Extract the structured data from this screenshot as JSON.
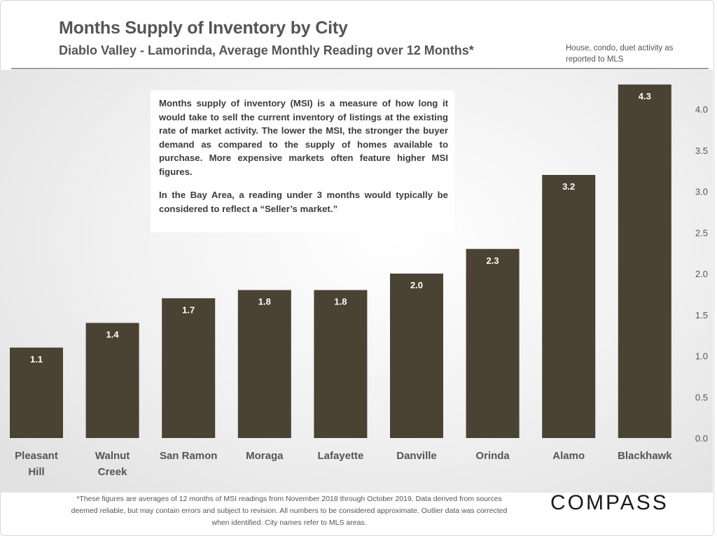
{
  "header": {
    "title": "Months Supply of Inventory by City",
    "subtitle": "Diablo Valley - Lamorinda,  Average Monthly Reading over 12 Months*",
    "source_note": "House, condo, duet activity as reported to MLS"
  },
  "callout": {
    "paragraph1": "Months supply of inventory (MSI) is a measure of how long it would take to sell the current inventory of listings at the existing rate of market activity. The lower the MSI, the stronger the buyer demand as compared to the supply of homes available to purchase. More expensive markets often feature higher MSI figures.",
    "paragraph2": "In the Bay Area, a reading under 3 months would typically be considered to reflect a “Seller’s market.”"
  },
  "footnote": "*These figures are averages of 12 months of MSI readings from November 2018 through October 2019. Data derived from sources deemed reliable, but may contain errors and subject to revision. All numbers to be considered approximate. Outlier data was corrected when identified. City names refer to MLS areas.",
  "brand": {
    "logo_text": "COMPASS"
  },
  "colors": {
    "bar": "#4a4232",
    "text": "#555555"
  },
  "chart_data": {
    "type": "bar",
    "title": "Months Supply of Inventory by City",
    "xlabel": "",
    "ylabel": "",
    "categories": [
      [
        "Pleasant",
        "Hill"
      ],
      [
        "Walnut",
        "Creek"
      ],
      [
        "San Ramon"
      ],
      [
        "Moraga"
      ],
      [
        "Lafayette"
      ],
      [
        "Danville"
      ],
      [
        "Orinda"
      ],
      [
        "Alamo"
      ],
      [
        "Blackhawk"
      ]
    ],
    "values": [
      1.1,
      1.4,
      1.7,
      1.8,
      1.8,
      2.0,
      2.3,
      3.2,
      4.3
    ],
    "value_labels": [
      "1.1",
      "1.4",
      "1.7",
      "1.8",
      "1.8",
      "2.0",
      "2.3",
      "3.2",
      "4.3"
    ],
    "ylim": [
      0,
      4.3
    ],
    "yticks": [
      0.0,
      0.5,
      1.0,
      1.5,
      2.0,
      2.5,
      3.0,
      3.5,
      4.0
    ],
    "ytick_labels": [
      "0.0",
      "0.5",
      "1.0",
      "1.5",
      "2.0",
      "2.5",
      "3.0",
      "3.5",
      "4.0"
    ],
    "yaxis_side": "right",
    "grid": false,
    "legend": "none"
  }
}
